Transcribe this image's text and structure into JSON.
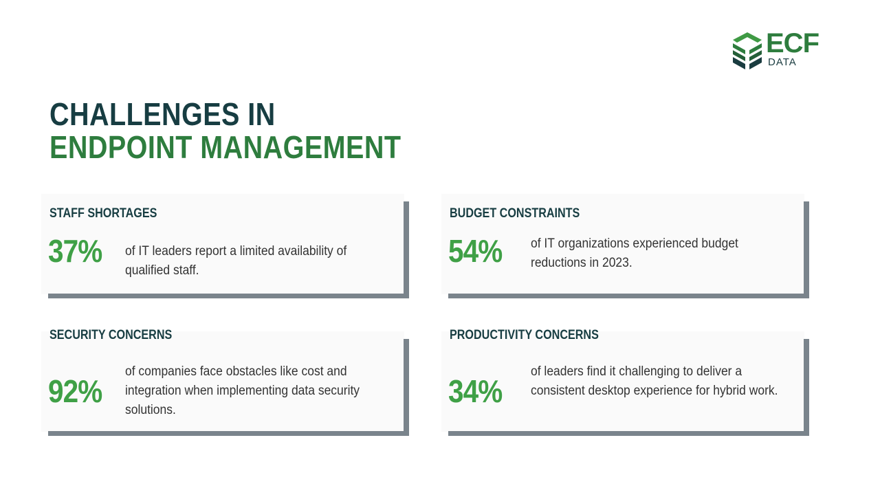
{
  "logo": {
    "name": "ECF",
    "sub": "DATA"
  },
  "title": {
    "line1": "CHALLENGES IN",
    "line2": "ENDPOINT MANAGEMENT"
  },
  "cards": [
    {
      "heading": "STAFF SHORTAGES",
      "percent": "37%",
      "text": "of IT leaders report a limited availability of qualified staff."
    },
    {
      "heading": "BUDGET CONSTRAINTS",
      "percent": "54%",
      "text": "of IT organizations experienced budget reductions in 2023."
    },
    {
      "heading": "SECURITY CONCERNS",
      "percent": "92%",
      "text": "of companies face obstacles like cost and integration when implementing data security solutions."
    },
    {
      "heading": "PRODUCTIVITY CONCERNS",
      "percent": "34%",
      "text": "of leaders find it challenging to deliver a consistent desktop experience for hybrid work."
    }
  ]
}
